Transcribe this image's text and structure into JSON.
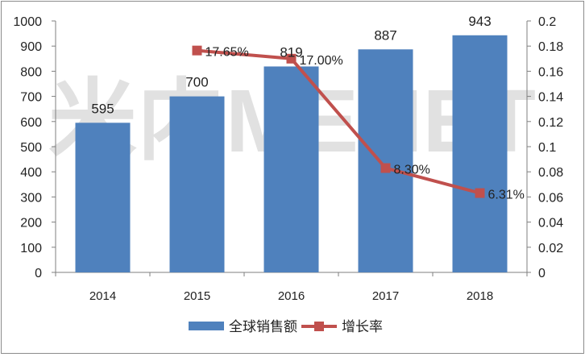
{
  "watermark": "米内MENET",
  "chart_data": {
    "type": "bar",
    "categories": [
      "2014",
      "2015",
      "2016",
      "2017",
      "2018"
    ],
    "series": [
      {
        "name": "全球销售额",
        "type": "bar",
        "axis": "left",
        "values": [
          595,
          700,
          819,
          887,
          943
        ],
        "labels": [
          "595",
          "700",
          "819",
          "887",
          "943"
        ],
        "color": "#4f81bd"
      },
      {
        "name": "增长率",
        "type": "line",
        "axis": "right",
        "x": [
          "2015",
          "2016",
          "2017",
          "2018"
        ],
        "values": [
          0.1765,
          0.17,
          0.083,
          0.0631
        ],
        "labels": [
          "17.65%",
          "17.00%",
          "8.30%",
          "6.31%"
        ],
        "color": "#c0504d"
      }
    ],
    "left_axis": {
      "ylim": [
        0,
        1000
      ],
      "ticks": [
        "0",
        "100",
        "200",
        "300",
        "400",
        "500",
        "600",
        "700",
        "800",
        "900",
        "1000"
      ]
    },
    "right_axis": {
      "ylim": [
        0,
        0.2
      ],
      "ticks": [
        "0",
        "0.02",
        "0.04",
        "0.06",
        "0.08",
        "0.1",
        "0.12",
        "0.14",
        "0.16",
        "0.18",
        "0.2"
      ]
    },
    "grid": false,
    "legend": "bottom"
  }
}
